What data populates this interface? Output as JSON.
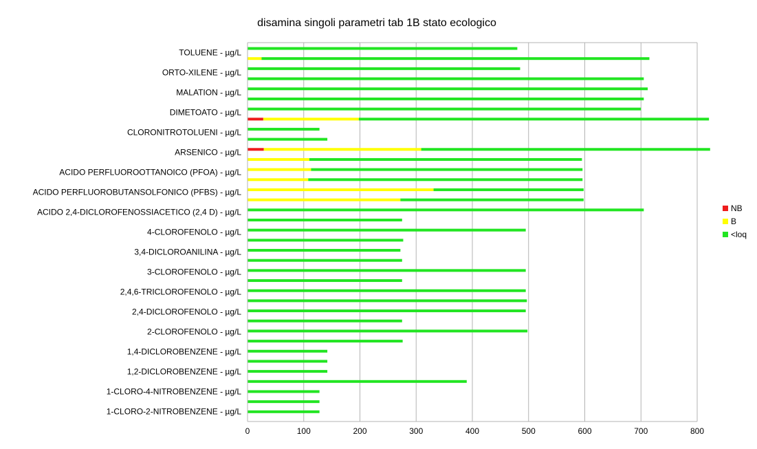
{
  "chart_data": {
    "type": "bar",
    "orientation": "horizontal",
    "title": "disamina singoli parametri tab 1B  stato ecologico",
    "xlabel": "",
    "ylabel": "",
    "xlim": [
      0,
      800
    ],
    "x_ticks": [
      0,
      100,
      200,
      300,
      400,
      500,
      600,
      700,
      800
    ],
    "grid": true,
    "legend_position": "right",
    "categories": [
      "TOLUENE - µg/L",
      "ORTO-XILENE - µg/L",
      "MALATION - µg/L",
      "DIMETOATO - µg/L",
      "CLORONITROTOLUENI - µg/L",
      "ARSENICO - µg/L",
      "ACIDO PERFLUOROOTTANOICO (PFOA) - µg/L",
      "ACIDO PERFLUOROBUTANSOLFONICO (PFBS) - µg/L",
      "ACIDO 2,4-DICLOROFENOSSIACETICO (2,4 D) - µg/L",
      "4-CLOROFENOLO - µg/L",
      "3,4-DICLOROANILINA - µg/L",
      "3-CLOROFENOLO - µg/L",
      "2,4,6-TRICLOROFENOLO - µg/L",
      "2,4-DICLOROFENOLO - µg/L",
      "2-CLOROFENOLO - µg/L",
      "1,4-DICLOROBENZENE - µg/L",
      "1,2-DICLOROBENZENE - µg/L",
      "1-CLORO-4-NITROBENZENE - µg/L",
      "1-CLORO-2-NITROBENZENE - µg/L"
    ],
    "bars": [
      {
        "category": 0,
        "NB": 0,
        "B": 0,
        "<loq": 480
      },
      {
        "category": 0,
        "NB": 0,
        "B": 25,
        "<loq": 690
      },
      {
        "category": 1,
        "NB": 0,
        "B": 0,
        "<loq": 485
      },
      {
        "category": 2,
        "NB": 0,
        "B": 0,
        "<loq": 705
      },
      {
        "category": 2,
        "NB": 0,
        "B": 0,
        "<loq": 712
      },
      {
        "category": 3,
        "NB": 0,
        "B": 0,
        "<loq": 705
      },
      {
        "category": 3,
        "NB": 0,
        "B": 0,
        "<loq": 700
      },
      {
        "category": 3,
        "NB": 28,
        "B": 170,
        "<loq": 623
      },
      {
        "category": 4,
        "NB": 0,
        "B": 0,
        "<loq": 128
      },
      {
        "category": 5,
        "NB": 0,
        "B": 0,
        "<loq": 142
      },
      {
        "category": 5,
        "NB": 29,
        "B": 280,
        "<loq": 514
      },
      {
        "category": 6,
        "NB": 0,
        "B": 110,
        "<loq": 485
      },
      {
        "category": 6,
        "NB": 0,
        "B": 113,
        "<loq": 483
      },
      {
        "category": 7,
        "NB": 0,
        "B": 108,
        "<loq": 488
      },
      {
        "category": 7,
        "NB": 0,
        "B": 331,
        "<loq": 267
      },
      {
        "category": 7,
        "NB": 0,
        "B": 272,
        "<loq": 326
      },
      {
        "category": 8,
        "NB": 0,
        "B": 0,
        "<loq": 705
      },
      {
        "category": 9,
        "NB": 0,
        "B": 0,
        "<loq": 275
      },
      {
        "category": 9,
        "NB": 0,
        "B": 0,
        "<loq": 495
      },
      {
        "category": 10,
        "NB": 0,
        "B": 0,
        "<loq": 277
      },
      {
        "category": 10,
        "NB": 0,
        "B": 0,
        "<loq": 272
      },
      {
        "category": 11,
        "NB": 0,
        "B": 0,
        "<loq": 275
      },
      {
        "category": 11,
        "NB": 0,
        "B": 0,
        "<loq": 495
      },
      {
        "category": 12,
        "NB": 0,
        "B": 0,
        "<loq": 275
      },
      {
        "category": 12,
        "NB": 0,
        "B": 0,
        "<loq": 495
      },
      {
        "category": 13,
        "NB": 0,
        "B": 0,
        "<loq": 497
      },
      {
        "category": 13,
        "NB": 0,
        "B": 0,
        "<loq": 495
      },
      {
        "category": 14,
        "NB": 0,
        "B": 0,
        "<loq": 275
      },
      {
        "category": 14,
        "NB": 0,
        "B": 0,
        "<loq": 498
      },
      {
        "category": 15,
        "NB": 0,
        "B": 0,
        "<loq": 276
      },
      {
        "category": 15,
        "NB": 0,
        "B": 0,
        "<loq": 142
      },
      {
        "category": 16,
        "NB": 0,
        "B": 0,
        "<loq": 142
      },
      {
        "category": 16,
        "NB": 0,
        "B": 0,
        "<loq": 142
      },
      {
        "category": 17,
        "NB": 0,
        "B": 0,
        "<loq": 390
      },
      {
        "category": 17,
        "NB": 0,
        "B": 0,
        "<loq": 128
      },
      {
        "category": 18,
        "NB": 0,
        "B": 0,
        "<loq": 128
      },
      {
        "category": 18,
        "NB": 0,
        "B": 0,
        "<loq": 128
      }
    ],
    "series": [
      {
        "name": "NB",
        "color": "#ee1c1c"
      },
      {
        "name": "B",
        "color": "#ffff00"
      },
      {
        "name": "<loq",
        "color": "#22e522"
      }
    ]
  }
}
